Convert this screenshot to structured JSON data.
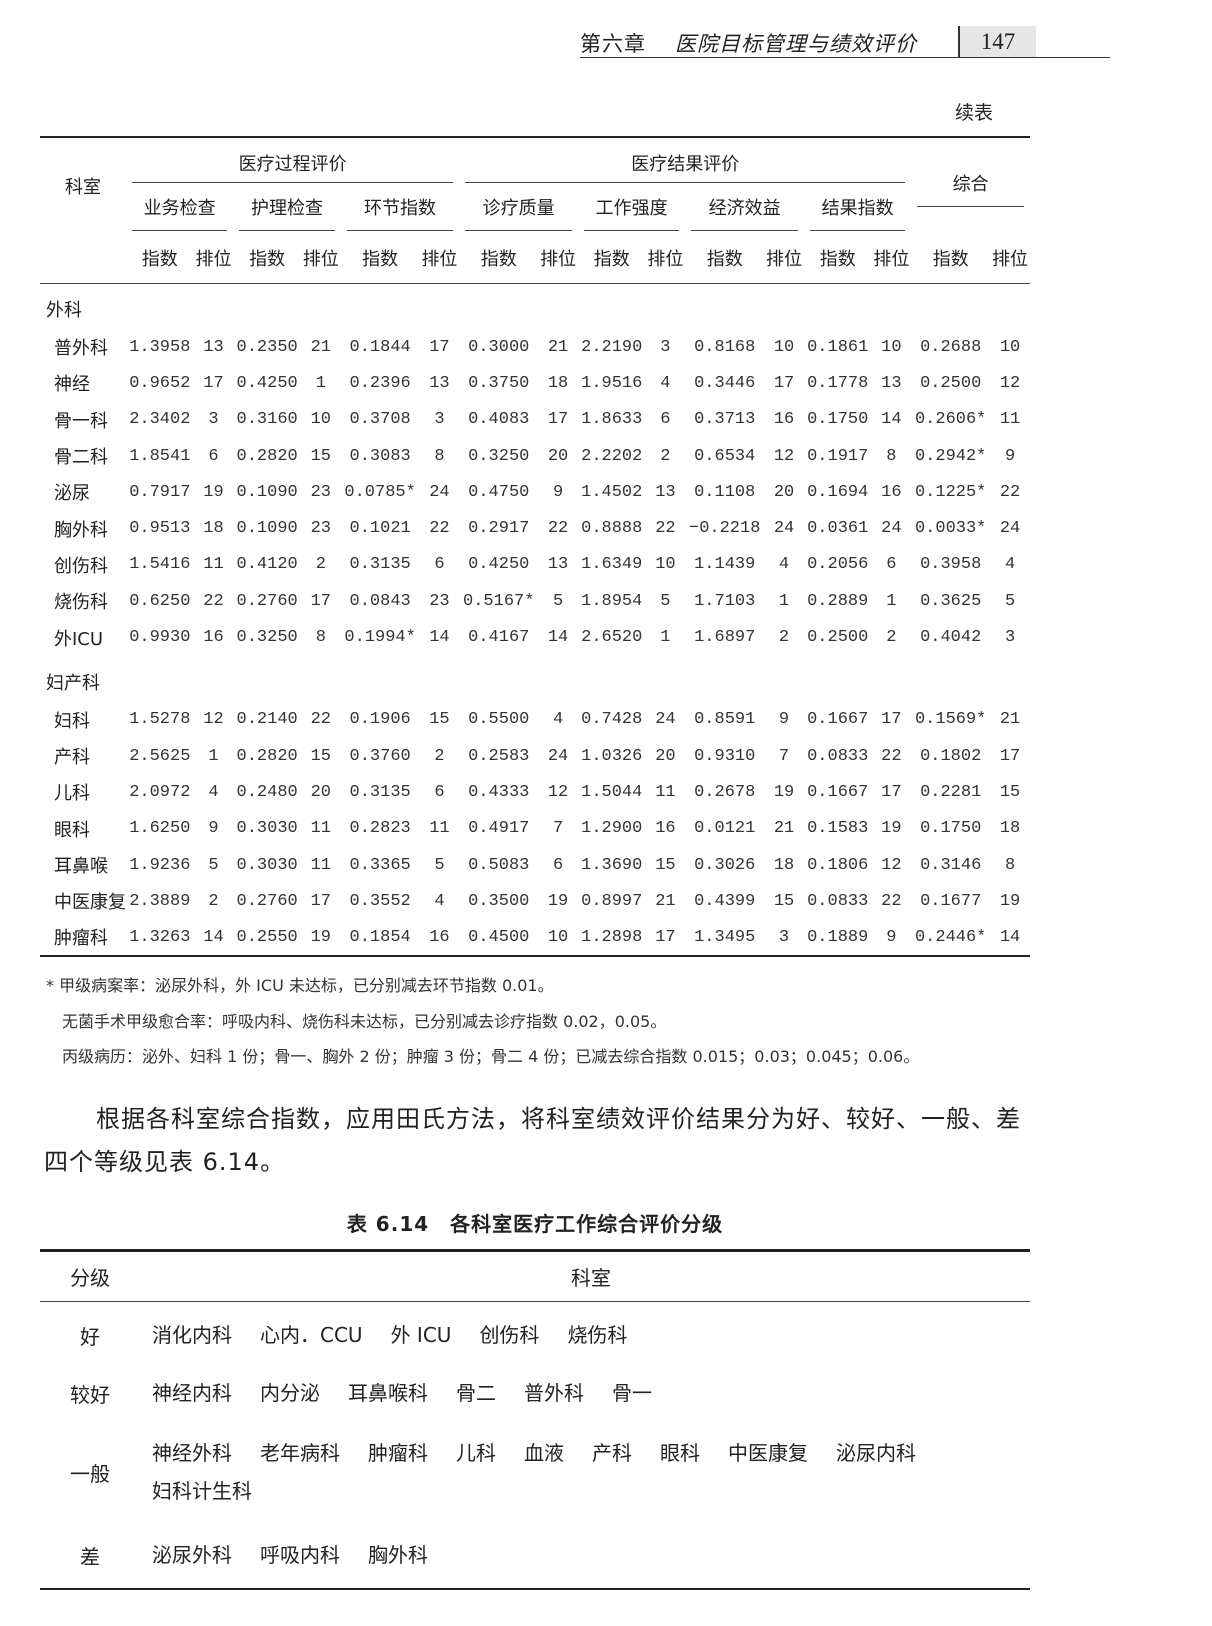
{
  "header": {
    "chapter": "第六章",
    "chapter_title": "医院目标管理与绩效评价",
    "page_number": "147"
  },
  "continued_label": "续表",
  "table1": {
    "dept_header": "科室",
    "groups": [
      "医疗过程评价",
      "医疗结果评价"
    ],
    "composite_header": "综合",
    "sub_headers": [
      "业务检查",
      "护理检查",
      "环节指数",
      "诊疗质量",
      "工作强度",
      "经济效益",
      "结果指数"
    ],
    "index_label": "指数",
    "rank_label": "排位",
    "sections": [
      {
        "name": "外科",
        "rows": [
          [
            "普外科",
            "1.3958",
            "13",
            "0.2350",
            "21",
            "0.1844",
            "17",
            "0.3000",
            "21",
            "2.2190",
            "3",
            "0.8168",
            "10",
            "0.1861",
            "10",
            "0.2688",
            "10"
          ],
          [
            "神经",
            "0.9652",
            "17",
            "0.4250",
            "1",
            "0.2396",
            "13",
            "0.3750",
            "18",
            "1.9516",
            "4",
            "0.3446",
            "17",
            "0.1778",
            "13",
            "0.2500",
            "12"
          ],
          [
            "骨一科",
            "2.3402",
            "3",
            "0.3160",
            "10",
            "0.3708",
            "3",
            "0.4083",
            "17",
            "1.8633",
            "6",
            "0.3713",
            "16",
            "0.1750",
            "14",
            "0.2606*",
            "11"
          ],
          [
            "骨二科",
            "1.8541",
            "6",
            "0.2820",
            "15",
            "0.3083",
            "8",
            "0.3250",
            "20",
            "2.2202",
            "2",
            "0.6534",
            "12",
            "0.1917",
            "8",
            "0.2942*",
            "9"
          ],
          [
            "泌尿",
            "0.7917",
            "19",
            "0.1090",
            "23",
            "0.0785*",
            "24",
            "0.4750",
            "9",
            "1.4502",
            "13",
            "0.1108",
            "20",
            "0.1694",
            "16",
            "0.1225*",
            "22"
          ],
          [
            "胸外科",
            "0.9513",
            "18",
            "0.1090",
            "23",
            "0.1021",
            "22",
            "0.2917",
            "22",
            "0.8888",
            "22",
            "−0.2218",
            "24",
            "0.0361",
            "24",
            "0.0033*",
            "24"
          ],
          [
            "创伤科",
            "1.5416",
            "11",
            "0.4120",
            "2",
            "0.3135",
            "6",
            "0.4250",
            "13",
            "1.6349",
            "10",
            "1.1439",
            "4",
            "0.2056",
            "6",
            "0.3958",
            "4"
          ],
          [
            "烧伤科",
            "0.6250",
            "22",
            "0.2760",
            "17",
            "0.0843",
            "23",
            "0.5167*",
            "5",
            "1.8954",
            "5",
            "1.7103",
            "1",
            "0.2889",
            "1",
            "0.3625",
            "5"
          ],
          [
            "外ICU",
            "0.9930",
            "16",
            "0.3250",
            "8",
            "0.1994*",
            "14",
            "0.4167",
            "14",
            "2.6520",
            "1",
            "1.6897",
            "2",
            "0.2500",
            "2",
            "0.4042",
            "3"
          ]
        ]
      },
      {
        "name": "妇产科",
        "rows": [
          [
            "妇科",
            "1.5278",
            "12",
            "0.2140",
            "22",
            "0.1906",
            "15",
            "0.5500",
            "4",
            "0.7428",
            "24",
            "0.8591",
            "9",
            "0.1667",
            "17",
            "0.1569*",
            "21"
          ],
          [
            "产科",
            "2.5625",
            "1",
            "0.2820",
            "15",
            "0.3760",
            "2",
            "0.2583",
            "24",
            "1.0326",
            "20",
            "0.9310",
            "7",
            "0.0833",
            "22",
            "0.1802",
            "17"
          ],
          [
            "儿科",
            "2.0972",
            "4",
            "0.2480",
            "20",
            "0.3135",
            "6",
            "0.4333",
            "12",
            "1.5044",
            "11",
            "0.2678",
            "19",
            "0.1667",
            "17",
            "0.2281",
            "15"
          ],
          [
            "眼科",
            "1.6250",
            "9",
            "0.3030",
            "11",
            "0.2823",
            "11",
            "0.4917",
            "7",
            "1.2900",
            "16",
            "0.0121",
            "21",
            "0.1583",
            "19",
            "0.1750",
            "18"
          ],
          [
            "耳鼻喉",
            "1.9236",
            "5",
            "0.3030",
            "11",
            "0.3365",
            "5",
            "0.5083",
            "6",
            "1.3690",
            "15",
            "0.3026",
            "18",
            "0.1806",
            "12",
            "0.3146",
            "8"
          ],
          [
            "中医康复",
            "2.3889",
            "2",
            "0.2760",
            "17",
            "0.3552",
            "4",
            "0.3500",
            "19",
            "0.8997",
            "21",
            "0.4399",
            "15",
            "0.0833",
            "22",
            "0.1677",
            "19"
          ],
          [
            "肿瘤科",
            "1.3263",
            "14",
            "0.2550",
            "19",
            "0.1854",
            "16",
            "0.4500",
            "10",
            "1.2898",
            "17",
            "1.3495",
            "3",
            "0.1889",
            "9",
            "0.2446*",
            "14"
          ]
        ]
      }
    ]
  },
  "notes": [
    "* 甲级病案率：泌尿外科，外 ICU 未达标，已分别减去环节指数 0.01。",
    "无菌手术甲级愈合率：呼吸内科、烧伤科未达标，已分别减去诊疗指数 0.02，0.05。",
    "丙级病历：泌外、妇科 1 份；骨一、胸外 2 份；肿瘤 3 份；骨二 4 份；已减去综合指数 0.015；0.03；0.045；0.06。"
  ],
  "paragraph": "根据各科室综合指数，应用田氏方法，将科室绩效评价结果分为好、较好、一般、差四个等级见表 6.14。",
  "table2": {
    "caption": "表 6.14　各科室医疗工作综合评价分级",
    "headers": [
      "分级",
      "科室"
    ],
    "rows": [
      {
        "grade": "好",
        "depts": [
          "消化内科",
          "心内．CCU",
          "外 ICU",
          "创伤科",
          "烧伤科"
        ]
      },
      {
        "grade": "较好",
        "depts": [
          "神经内科",
          "内分泌",
          "耳鼻喉科",
          "骨二",
          "普外科",
          "骨一"
        ]
      },
      {
        "grade": "一般",
        "depts": [
          "神经外科",
          "老年病科",
          "肿瘤科",
          "儿科",
          "血液",
          "产科",
          "眼科",
          "中医康复",
          "泌尿内科",
          "妇科计生科"
        ]
      },
      {
        "grade": "差",
        "depts": [
          "泌尿外科",
          "呼吸内科",
          "胸外科"
        ]
      }
    ]
  }
}
